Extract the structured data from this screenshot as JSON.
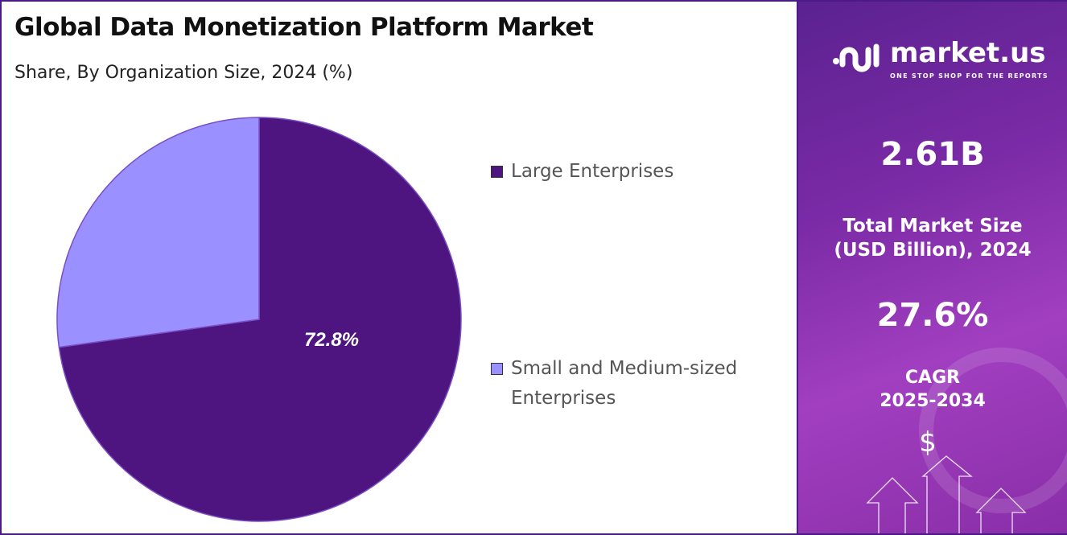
{
  "chart_data": {
    "type": "pie",
    "title": "Global Data Monetization Platform Market",
    "subtitle": "Share, By Organization Size, 2024 (%)",
    "categories": [
      "Large Enterprises",
      "Small and Medium-sized Enterprises"
    ],
    "values": [
      72.8,
      27.2
    ],
    "data_labels": [
      "72.8%",
      ""
    ],
    "colors": [
      "#4e1580",
      "#9b90ff"
    ],
    "legend_position": "right"
  },
  "legend": {
    "items": [
      {
        "label": "Large Enterprises",
        "color": "#4e1580"
      },
      {
        "label_line1": "Small and Medium-sized",
        "label_line2": "Enterprises",
        "color": "#9b90ff"
      }
    ]
  },
  "sidebar": {
    "logo": {
      "name": "market.us",
      "tagline": "ONE STOP SHOP FOR THE REPORTS"
    },
    "market_size_value": "2.61B",
    "market_size_label_line1": "Total Market Size",
    "market_size_label_line2": "(USD Billion), 2024",
    "cagr_value": "27.6%",
    "cagr_label_line1": "CAGR",
    "cagr_label_line2": "2025-2034",
    "dollar_symbol": "$"
  }
}
